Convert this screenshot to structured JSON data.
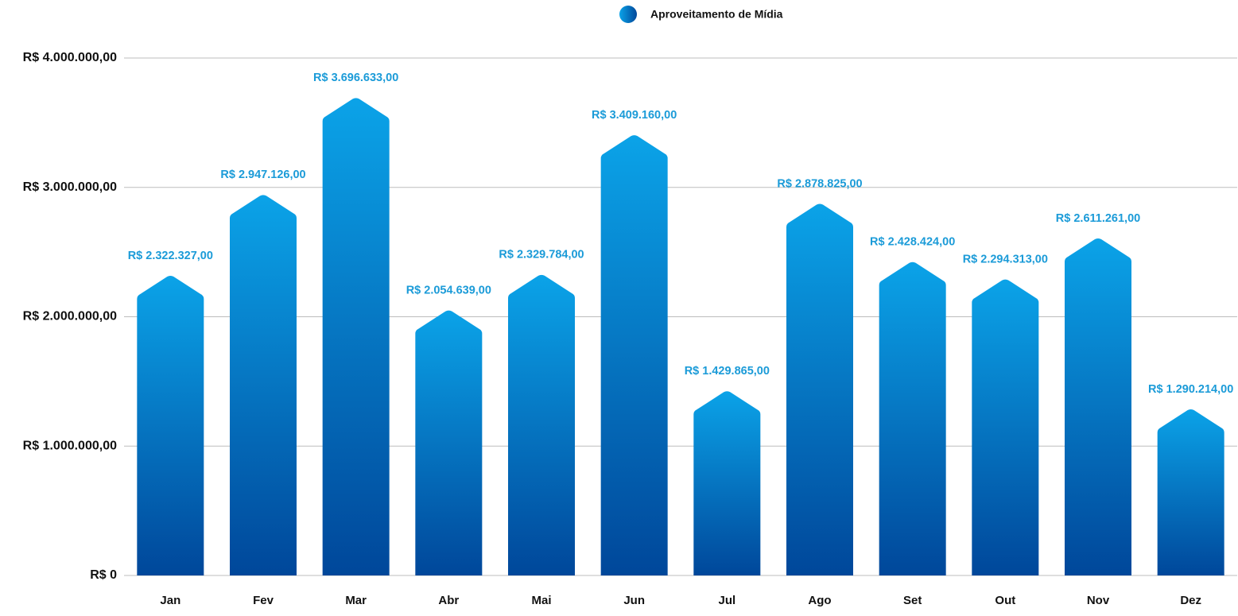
{
  "chart_data": {
    "type": "bar",
    "categories": [
      "Jan",
      "Fev",
      "Mar",
      "Abr",
      "Mai",
      "Jun",
      "Jul",
      "Ago",
      "Set",
      "Out",
      "Nov",
      "Dez"
    ],
    "series": [
      {
        "name": "Aproveitamento de Mídia",
        "gradient": [
          "#0ba3e8",
          "#00479a"
        ],
        "label_color": "#1b9bd8",
        "values": [
          2322327,
          2947126,
          3696633,
          2054639,
          2329784,
          3409160,
          1429865,
          2878825,
          2428424,
          2294313,
          2611261,
          1290214
        ],
        "value_labels": [
          "R$ 2.322.327,00",
          "R$ 2.947.126,00",
          "R$ 3.696.633,00",
          "R$ 2.054.639,00",
          "R$ 2.329.784,00",
          "R$ 3.409.160,00",
          "R$ 1.429.865,00",
          "R$ 2.878.825,00",
          "R$ 2.428.424,00",
          "R$ 2.294.313,00",
          "R$ 2.611.261,00",
          "R$ 1.290.214,00"
        ]
      }
    ],
    "ylim": [
      0,
      4000000
    ],
    "yticks": [
      {
        "value": 0,
        "label": "R$ 0"
      },
      {
        "value": 1000000,
        "label": "R$ 1.000.000,00"
      },
      {
        "value": 2000000,
        "label": "R$ 2.000.000,00"
      },
      {
        "value": 3000000,
        "label": "R$ 3.000.000,00"
      },
      {
        "value": 4000000,
        "label": "R$ 4.000.000,00"
      }
    ],
    "grid": true,
    "legend": "top"
  }
}
